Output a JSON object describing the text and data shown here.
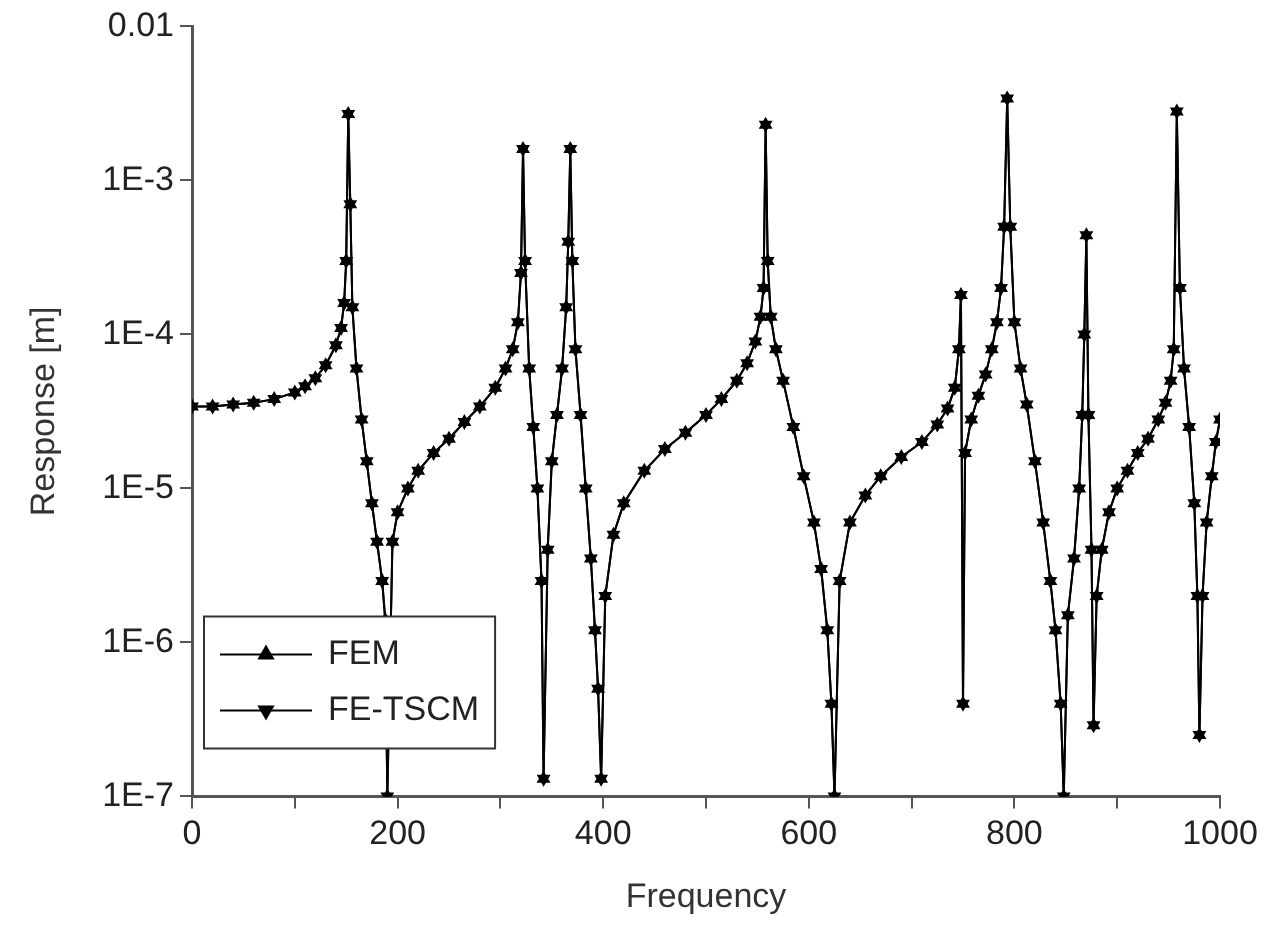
{
  "chart_data": {
    "type": "line",
    "xlabel": "Frequency",
    "ylabel": "Response [m]",
    "log": "y",
    "xlim": [
      0,
      1000
    ],
    "xticks": [
      0,
      {
        "value": 100,
        "label": null
      },
      200,
      {
        "value": 300,
        "label": null
      },
      400,
      {
        "value": 500,
        "label": null
      },
      600,
      {
        "value": 700,
        "label": null
      },
      800,
      {
        "value": 900,
        "label": null
      },
      1000
    ],
    "ylim": [
      1e-07,
      0.01
    ],
    "yticks": [
      {
        "value": 1e-07,
        "label": "1E-7"
      },
      {
        "value": 1e-06,
        "label": "1E-6"
      },
      {
        "value": 1e-05,
        "label": "1E-5"
      },
      {
        "value": 0.0001,
        "label": "1E-4"
      },
      {
        "value": 0.001,
        "label": "1E-3"
      },
      {
        "value": 0.01,
        "label": "0.01"
      }
    ],
    "grid": false,
    "legend": "bottom left",
    "marker": "triangle",
    "line_style": "solid",
    "x": [
      0,
      20,
      40,
      60,
      80,
      100,
      110,
      120,
      130,
      140,
      145,
      148,
      150,
      152,
      154,
      156,
      160,
      165,
      170,
      175,
      180,
      185,
      188,
      190,
      195,
      200,
      210,
      220,
      235,
      250,
      265,
      280,
      295,
      305,
      312,
      317,
      320,
      322,
      324,
      328,
      332,
      336,
      340,
      342,
      346,
      350,
      355,
      360,
      364,
      366,
      368,
      370,
      373,
      378,
      383,
      388,
      392,
      395,
      398,
      402,
      410,
      420,
      440,
      460,
      480,
      500,
      515,
      530,
      540,
      548,
      553,
      556,
      558,
      560,
      563,
      568,
      575,
      585,
      595,
      605,
      612,
      618,
      622,
      625,
      630,
      640,
      655,
      670,
      690,
      710,
      725,
      735,
      742,
      746,
      748,
      750,
      752,
      758,
      765,
      772,
      778,
      783,
      787,
      790,
      793,
      796,
      800,
      806,
      812,
      820,
      828,
      835,
      840,
      845,
      848,
      852,
      858,
      863,
      866,
      868,
      870,
      872,
      875,
      877,
      880,
      885,
      892,
      900,
      910,
      920,
      930,
      940,
      947,
      952,
      955,
      958,
      961,
      965,
      970,
      975,
      978,
      980,
      983,
      987,
      992,
      996,
      1000
    ],
    "series": [
      {
        "name": "FEM",
        "color": "#000000",
        "values": [
          3.4e-05,
          3.4e-05,
          3.5e-05,
          3.6e-05,
          3.8e-05,
          4.2e-05,
          4.6e-05,
          5.2e-05,
          6.3e-05,
          8.5e-05,
          0.00011,
          0.00016,
          0.0003,
          0.0027,
          0.0007,
          0.00015,
          6e-05,
          2.8e-05,
          1.5e-05,
          8e-06,
          4.5e-06,
          2.5e-06,
          1.4e-06,
          1e-07,
          4.5e-06,
          7e-06,
          1e-05,
          1.3e-05,
          1.7e-05,
          2.1e-05,
          2.7e-05,
          3.4e-05,
          4.5e-05,
          6e-05,
          8e-05,
          0.00012,
          0.00025,
          0.0016,
          0.0003,
          6e-05,
          2.5e-05,
          1e-05,
          2.5e-06,
          1.3e-07,
          4e-06,
          1.5e-05,
          3e-05,
          6e-05,
          0.00015,
          0.0004,
          0.0016,
          0.0003,
          8e-05,
          3e-05,
          1e-05,
          3.5e-06,
          1.2e-06,
          5e-07,
          1.3e-07,
          2e-06,
          5e-06,
          8e-06,
          1.3e-05,
          1.8e-05,
          2.3e-05,
          3e-05,
          3.8e-05,
          5e-05,
          6.5e-05,
          9e-05,
          0.00013,
          0.0002,
          0.0023,
          0.0003,
          0.00013,
          8e-05,
          5e-05,
          2.5e-05,
          1.2e-05,
          6e-06,
          3e-06,
          1.2e-06,
          4e-07,
          1e-07,
          2.5e-06,
          6e-06,
          9e-06,
          1.2e-05,
          1.6e-05,
          2e-05,
          2.6e-05,
          3.3e-05,
          4.5e-05,
          8e-05,
          0.00018,
          4e-07,
          1.7e-05,
          2.8e-05,
          4e-05,
          5.5e-05,
          8e-05,
          0.00012,
          0.0002,
          0.0005,
          0.0034,
          0.0005,
          0.00012,
          6e-05,
          3.5e-05,
          1.5e-05,
          6e-06,
          2.5e-06,
          1.2e-06,
          4e-07,
          1e-07,
          1.5e-06,
          3.5e-06,
          1e-05,
          3e-05,
          0.0001,
          0.00044,
          3e-05,
          4e-06,
          2.9e-07,
          2e-06,
          4e-06,
          7e-06,
          1e-05,
          1.3e-05,
          1.7e-05,
          2.1e-05,
          2.8e-05,
          3.6e-05,
          5e-05,
          8e-05,
          0.0028,
          0.0002,
          6e-05,
          2.5e-05,
          8e-06,
          2e-06,
          2.5e-07,
          2e-06,
          6e-06,
          1.2e-05,
          2e-05,
          2.8e-05
        ]
      },
      {
        "name": "FE-TSCM",
        "color": "#000000",
        "values": [
          3.4e-05,
          3.4e-05,
          3.5e-05,
          3.6e-05,
          3.8e-05,
          4.2e-05,
          4.6e-05,
          5.2e-05,
          6.3e-05,
          8.5e-05,
          0.00011,
          0.00016,
          0.0003,
          0.0027,
          0.0007,
          0.00015,
          6e-05,
          2.8e-05,
          1.5e-05,
          8e-06,
          4.5e-06,
          2.5e-06,
          1.4e-06,
          1e-07,
          4.5e-06,
          7e-06,
          1e-05,
          1.3e-05,
          1.7e-05,
          2.1e-05,
          2.7e-05,
          3.4e-05,
          4.5e-05,
          6e-05,
          8e-05,
          0.00012,
          0.00025,
          0.0016,
          0.0003,
          6e-05,
          2.5e-05,
          1e-05,
          2.5e-06,
          1.3e-07,
          4e-06,
          1.5e-05,
          3e-05,
          6e-05,
          0.00015,
          0.0004,
          0.0016,
          0.0003,
          8e-05,
          3e-05,
          1e-05,
          3.5e-06,
          1.2e-06,
          5e-07,
          1.3e-07,
          2e-06,
          5e-06,
          8e-06,
          1.3e-05,
          1.8e-05,
          2.3e-05,
          3e-05,
          3.8e-05,
          5e-05,
          6.5e-05,
          9e-05,
          0.00013,
          0.0002,
          0.0023,
          0.0003,
          0.00013,
          8e-05,
          5e-05,
          2.5e-05,
          1.2e-05,
          6e-06,
          3e-06,
          1.2e-06,
          4e-07,
          1e-07,
          2.5e-06,
          6e-06,
          9e-06,
          1.2e-05,
          1.6e-05,
          2e-05,
          2.6e-05,
          3.3e-05,
          4.5e-05,
          8e-05,
          0.00018,
          4e-07,
          1.7e-05,
          2.8e-05,
          4e-05,
          5.5e-05,
          8e-05,
          0.00012,
          0.0002,
          0.0005,
          0.0034,
          0.0005,
          0.00012,
          6e-05,
          3.5e-05,
          1.5e-05,
          6e-06,
          2.5e-06,
          1.2e-06,
          4e-07,
          1e-07,
          1.5e-06,
          3.5e-06,
          1e-05,
          3e-05,
          0.0001,
          0.00044,
          3e-05,
          4e-06,
          2.9e-07,
          2e-06,
          4e-06,
          7e-06,
          1e-05,
          1.3e-05,
          1.7e-05,
          2.1e-05,
          2.8e-05,
          3.6e-05,
          5e-05,
          8e-05,
          0.0028,
          0.0002,
          6e-05,
          2.5e-05,
          8e-06,
          2e-06,
          2.5e-07,
          2e-06,
          6e-06,
          1.2e-05,
          2e-05,
          2.8e-05
        ]
      }
    ]
  }
}
